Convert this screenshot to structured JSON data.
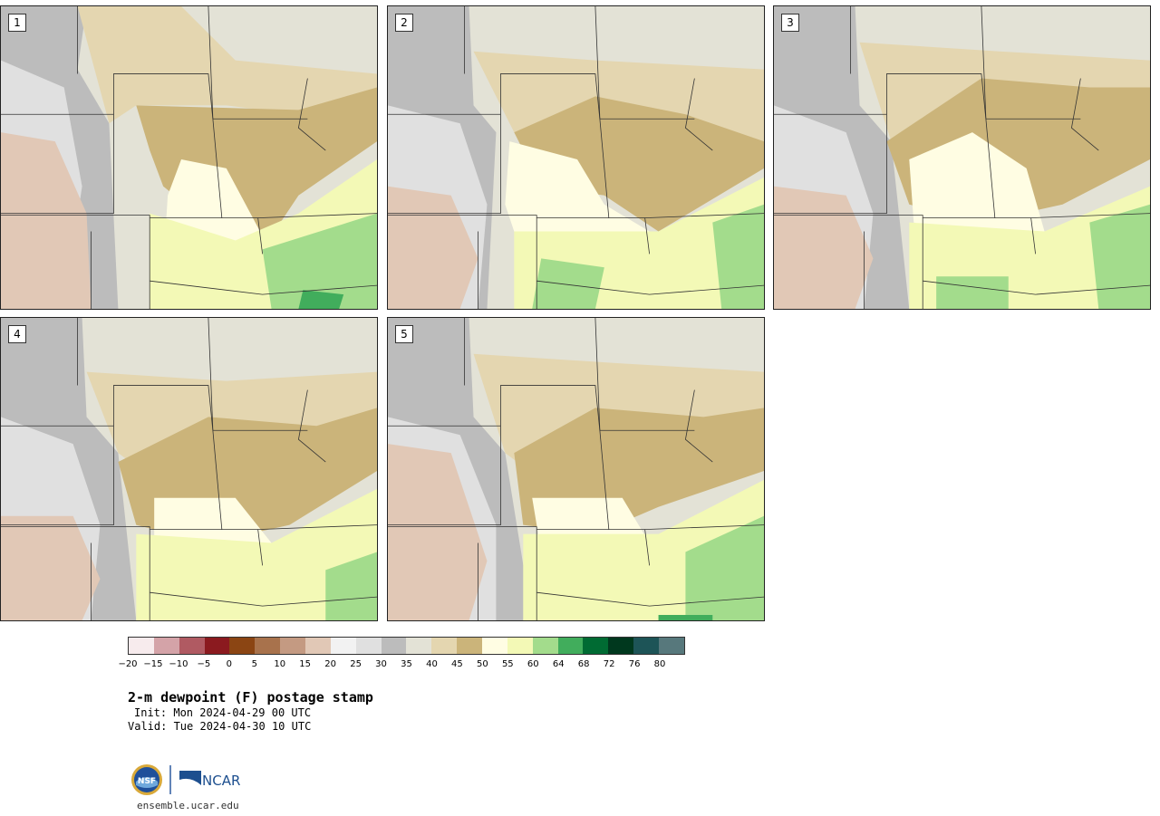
{
  "panels": [
    {
      "label": "1"
    },
    {
      "label": "2"
    },
    {
      "label": "3"
    },
    {
      "label": "4"
    },
    {
      "label": "5"
    }
  ],
  "colorbar": {
    "colors": [
      "#f7ebed",
      "#d4a3a8",
      "#b05a62",
      "#8b1a1f",
      "#8b4513",
      "#a8724c",
      "#c49a82",
      "#e1c8b6",
      "#f2f2f2",
      "#e0e0e0",
      "#bcbcbc",
      "#e3e2d6",
      "#e4d6b0",
      "#cbb47a",
      "#fffde3",
      "#f3f9b6",
      "#a3dc8c",
      "#41ad5c",
      "#006b33",
      "#00381e",
      "#1d5457",
      "#57787c"
    ],
    "ticks": [
      "−20",
      "−15",
      "−10",
      "−5",
      "0",
      "5",
      "10",
      "15",
      "20",
      "25",
      "30",
      "35",
      "40",
      "45",
      "50",
      "55",
      "60",
      "64",
      "68",
      "72",
      "76",
      "80"
    ]
  },
  "title": "2-m dewpoint (F) postage stamp",
  "init": "Init: Mon 2024-04-29 00 UTC",
  "valid": "Valid: Tue 2024-04-30 10 UTC",
  "logos": {
    "nsf": "NSF",
    "ncar": "NCAR"
  },
  "website": "ensemble.ucar.edu"
}
